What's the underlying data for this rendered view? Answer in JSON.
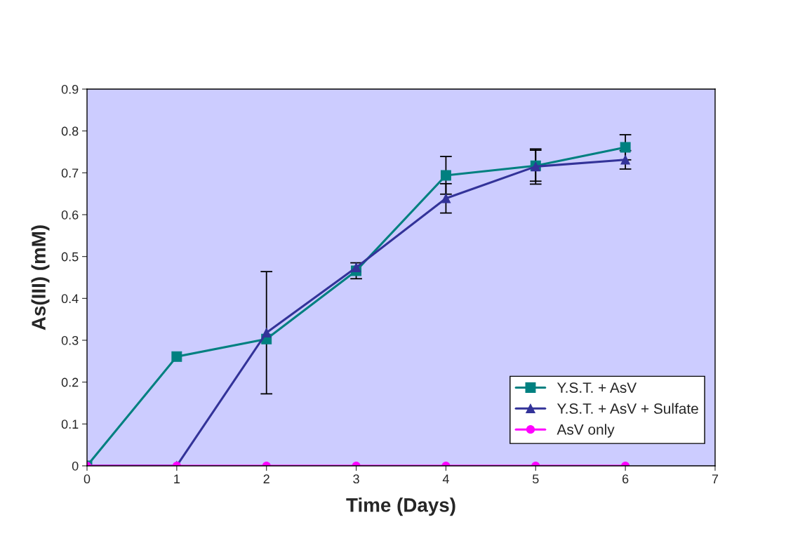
{
  "chart_data": {
    "type": "line",
    "xlabel": "Time (Days)",
    "ylabel": "As(III) (mM)",
    "x": [
      0,
      1,
      2,
      3,
      4,
      5,
      6
    ],
    "series": [
      {
        "name": "Y.S.T. + AsV",
        "color": "#008080",
        "marker": "square",
        "values": [
          0,
          0.261,
          0.303,
          0.466,
          0.694,
          0.717,
          0.761
        ],
        "errors": [
          null,
          null,
          null,
          0.019,
          0.045,
          0.037,
          0.03
        ]
      },
      {
        "name": "Y.S.T. + AsV + Sulfate",
        "color": "#333399",
        "marker": "triangle",
        "values": [
          0,
          0,
          0.318,
          0.474,
          0.639,
          0.715,
          0.731
        ],
        "errors": [
          null,
          null,
          0.146,
          null,
          0.035,
          0.042,
          0.022
        ]
      },
      {
        "name": "AsV only",
        "color": "#ff00ff",
        "marker": "circle",
        "values": [
          0,
          0,
          0,
          0,
          0,
          0,
          0
        ]
      }
    ],
    "xlim": [
      0,
      7
    ],
    "xticks": [
      0,
      1,
      2,
      3,
      4,
      5,
      6,
      7
    ],
    "ylim": [
      0,
      0.9
    ],
    "yticks": [
      0,
      0.1,
      0.2,
      0.3,
      0.4,
      0.5,
      0.6,
      0.7,
      0.8,
      0.9
    ],
    "grid": false,
    "legend": "bottom right"
  }
}
